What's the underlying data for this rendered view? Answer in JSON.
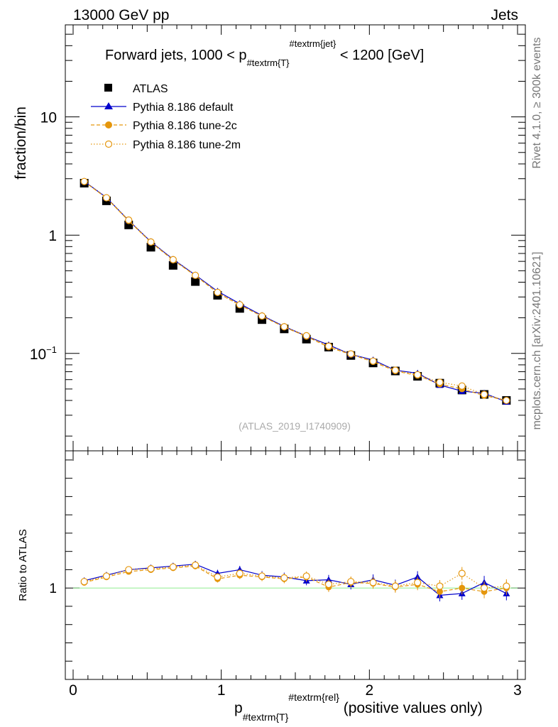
{
  "header": {
    "left": "13000 GeV pp",
    "right": "Jets"
  },
  "side_labels": {
    "rivet": "Rivet 4.1.0, ≥ 300k events",
    "mcplots": "mcplots.cern.ch [arXiv:2401.10621]"
  },
  "chart_data": {
    "type": "line",
    "title": "Forward jets, 1000 < p",
    "title_sub": "#textrm{T}",
    "title_sup": "#textrm{jet}",
    "title_tail": " < 1200 [GeV]",
    "watermark": "(ATLAS_2019_I1740909)",
    "ylabel": "fraction/bin",
    "ratio_ylabel": "Ratio to ATLAS",
    "xlabel_main": "p",
    "xlabel_sub": "#textrm{T}",
    "xlabel_sup": "#textrm{rel}",
    "xlabel_tail": " (positive values only)",
    "xlim": [
      0,
      3
    ],
    "ylim": [
      0.015,
      60
    ],
    "yscale": "log",
    "ratio_ylim": [
      0.5,
      1.75
    ],
    "x_ticks": [
      0,
      1,
      2,
      3
    ],
    "x_tick_labels": [
      "0",
      "1",
      "2",
      "3"
    ],
    "y_ticks": [
      0.1,
      1,
      10
    ],
    "y_tick_labels": [
      {
        "base": "10",
        "sup": "−1"
      },
      {
        "base": "1",
        "sup": ""
      },
      {
        "base": "10",
        "sup": ""
      }
    ],
    "ratio_y_ticks": [
      1
    ],
    "ratio_y_tick_labels": [
      "1"
    ],
    "x": [
      0.075,
      0.225,
      0.375,
      0.525,
      0.675,
      0.825,
      0.975,
      1.125,
      1.275,
      1.425,
      1.575,
      1.725,
      1.875,
      2.025,
      2.175,
      2.325,
      2.475,
      2.625,
      2.775,
      2.925
    ],
    "series": [
      {
        "name": "ATLAS",
        "style": "data",
        "color": "#000000",
        "values": [
          2.75,
          1.95,
          1.22,
          0.79,
          0.555,
          0.405,
          0.31,
          0.24,
          0.193,
          0.161,
          0.132,
          0.113,
          0.096,
          0.083,
          0.071,
          0.064,
          0.056,
          0.049,
          0.045,
          0.04
        ],
        "ratio": [
          1,
          1,
          1,
          1,
          1,
          1,
          1,
          1,
          1,
          1,
          1,
          1,
          1,
          1,
          1,
          1,
          1,
          1,
          1,
          1
        ]
      },
      {
        "name": "Pythia 8.186 default",
        "style": "triangle-solid",
        "color": "#0000cc",
        "values": [
          2.85,
          2.08,
          1.33,
          0.88,
          0.625,
          0.46,
          0.335,
          0.263,
          0.209,
          0.169,
          0.14,
          0.118,
          0.098,
          0.088,
          0.072,
          0.068,
          0.054,
          0.048,
          0.046,
          0.039
        ],
        "ratio": [
          1.04,
          1.07,
          1.1,
          1.11,
          1.12,
          1.13,
          1.08,
          1.1,
          1.07,
          1.06,
          1.04,
          1.045,
          1.02,
          1.045,
          1.015,
          1.06,
          0.96,
          0.97,
          1.03,
          0.97
        ]
      },
      {
        "name": "Pythia 8.186 tune-2c",
        "style": "circle-dashed",
        "color": "#e5960c",
        "values": [
          2.83,
          2.06,
          1.32,
          0.87,
          0.615,
          0.455,
          0.325,
          0.256,
          0.206,
          0.167,
          0.139,
          0.113,
          0.098,
          0.085,
          0.071,
          0.065,
          0.055,
          0.05,
          0.044,
          0.04
        ],
        "ratio": [
          1.03,
          1.06,
          1.09,
          1.1,
          1.11,
          1.12,
          1.05,
          1.07,
          1.06,
          1.05,
          1.06,
          1.005,
          1.03,
          1.025,
          1.005,
          1.02,
          0.98,
          1.0,
          0.98,
          1.0
        ]
      },
      {
        "name": "Pythia 8.186 tune-2m",
        "style": "circle-open-dotted",
        "color": "#e5960c",
        "values": [
          2.84,
          2.07,
          1.34,
          0.875,
          0.62,
          0.457,
          0.328,
          0.258,
          0.207,
          0.168,
          0.141,
          0.115,
          0.099,
          0.086,
          0.072,
          0.066,
          0.057,
          0.053,
          0.045,
          0.04
        ],
        "ratio": [
          1.035,
          1.065,
          1.1,
          1.105,
          1.115,
          1.125,
          1.06,
          1.08,
          1.065,
          1.055,
          1.065,
          1.02,
          1.035,
          1.03,
          1.01,
          1.03,
          1.01,
          1.08,
          1.0,
          1.01
        ]
      }
    ],
    "reference_line_color": "#90ee90"
  }
}
